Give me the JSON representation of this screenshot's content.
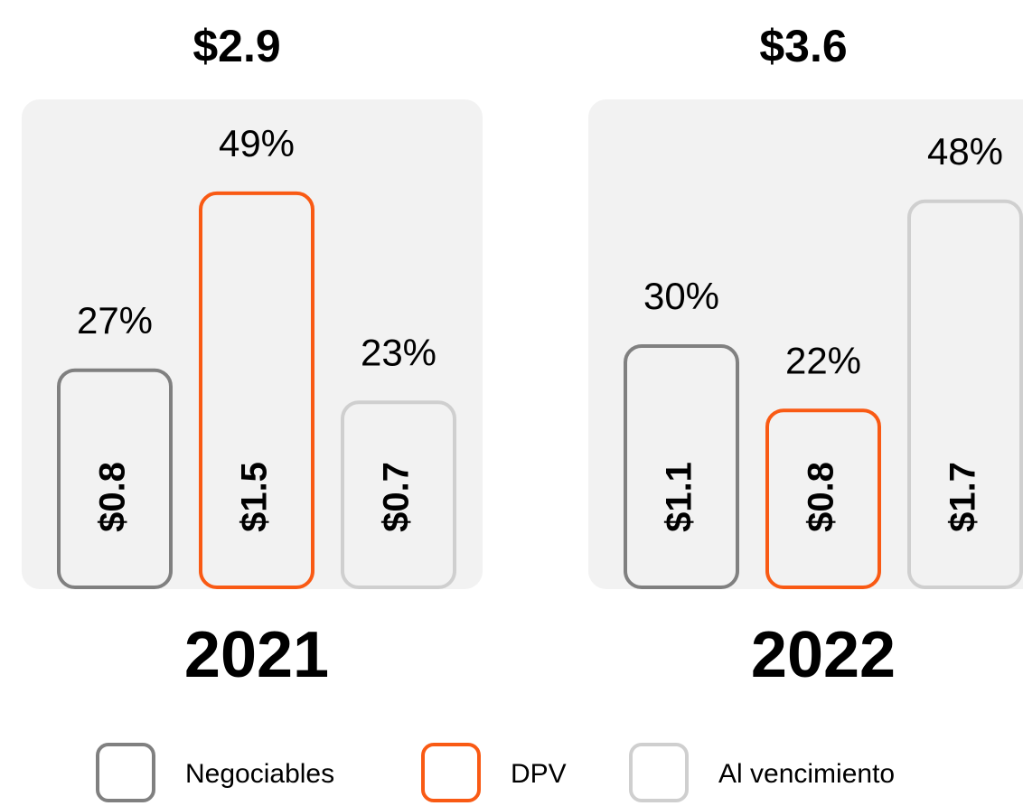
{
  "chart_data": [
    {
      "type": "bar",
      "title": "$2.9",
      "xlabel": "2021",
      "categories": [
        "Negociables",
        "DPV",
        "Al vencimiento"
      ],
      "colors": [
        "#808080",
        "#f95a14",
        "#cfcfcf"
      ],
      "values": [
        27,
        49,
        23
      ],
      "value_labels": [
        "27%",
        "49%",
        "23%"
      ],
      "amount_labels": [
        "$0.8",
        "$1.5",
        "$0.7"
      ],
      "ylim": [
        0,
        50
      ]
    },
    {
      "type": "bar",
      "title": "$3.6",
      "xlabel": "2022",
      "categories": [
        "Negociables",
        "DPV",
        "Al vencimiento"
      ],
      "colors": [
        "#808080",
        "#f95a14",
        "#cfcfcf"
      ],
      "values": [
        30,
        22,
        48
      ],
      "value_labels": [
        "30%",
        "22%",
        "48%"
      ],
      "amount_labels": [
        "$1.1",
        "$0.8",
        "$1.7"
      ],
      "ylim": [
        0,
        50
      ]
    }
  ]
}
